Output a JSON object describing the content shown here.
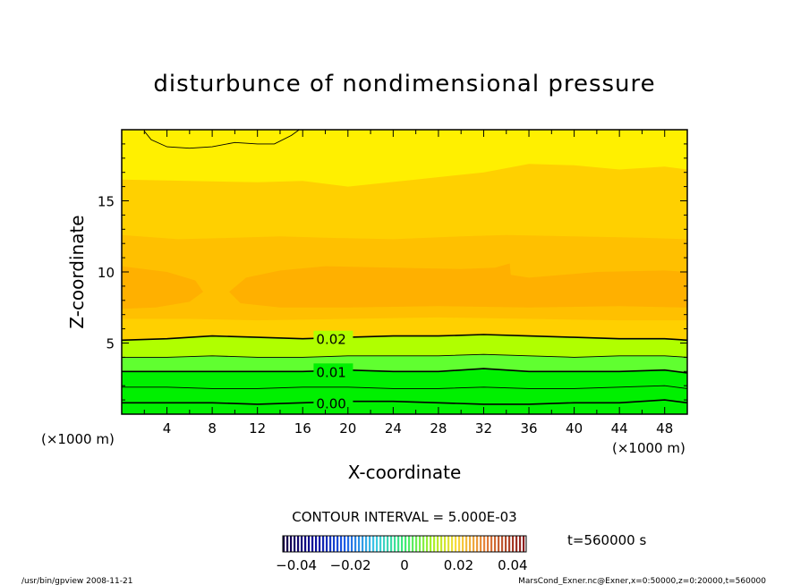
{
  "chart_data": {
    "type": "contour",
    "title": "disturbunce of nondimensional pressure",
    "xlabel": "X-coordinate",
    "ylabel": "Z-coordinate",
    "x_unit": "(×1000 m)",
    "y_unit": "(×1000 m)",
    "xlim": [
      0,
      50
    ],
    "ylim": [
      0,
      20
    ],
    "x_ticks": [
      4,
      8,
      12,
      16,
      20,
      24,
      28,
      32,
      36,
      40,
      44,
      48
    ],
    "y_ticks": [
      5,
      10,
      15
    ],
    "contour_interval_text": "CONTOUR INTERVAL = 5.000E-03",
    "contour_labels": [
      {
        "value": "0.02",
        "x": 17.2,
        "z": 5.3
      },
      {
        "value": "0.01",
        "x": 17.2,
        "z": 3.0
      },
      {
        "value": "0.00",
        "x": 17.2,
        "z": 0.8
      }
    ],
    "contour_lines": [
      {
        "value": 0.02,
        "labeled": true,
        "points": [
          [
            0,
            5.2
          ],
          [
            4,
            5.3
          ],
          [
            8,
            5.5
          ],
          [
            12,
            5.4
          ],
          [
            16,
            5.3
          ],
          [
            20,
            5.4
          ],
          [
            24,
            5.5
          ],
          [
            28,
            5.5
          ],
          [
            32,
            5.6
          ],
          [
            36,
            5.5
          ],
          [
            40,
            5.4
          ],
          [
            44,
            5.3
          ],
          [
            48,
            5.3
          ],
          [
            50,
            5.2
          ]
        ]
      },
      {
        "value": 0.015,
        "labeled": false,
        "points": [
          [
            0,
            4.0
          ],
          [
            4,
            4.0
          ],
          [
            8,
            4.1
          ],
          [
            12,
            4.0
          ],
          [
            16,
            4.0
          ],
          [
            20,
            4.1
          ],
          [
            24,
            4.1
          ],
          [
            28,
            4.1
          ],
          [
            32,
            4.2
          ],
          [
            36,
            4.1
          ],
          [
            40,
            4.0
          ],
          [
            44,
            4.1
          ],
          [
            48,
            4.1
          ],
          [
            50,
            4.0
          ]
        ]
      },
      {
        "value": 0.01,
        "labeled": true,
        "points": [
          [
            0,
            3.0
          ],
          [
            4,
            3.0
          ],
          [
            8,
            3.0
          ],
          [
            12,
            3.0
          ],
          [
            16,
            3.0
          ],
          [
            20,
            3.1
          ],
          [
            24,
            3.0
          ],
          [
            28,
            3.0
          ],
          [
            32,
            3.2
          ],
          [
            36,
            3.0
          ],
          [
            40,
            3.0
          ],
          [
            44,
            3.0
          ],
          [
            48,
            3.1
          ],
          [
            50,
            2.9
          ]
        ]
      },
      {
        "value": 0.005,
        "labeled": false,
        "points": [
          [
            0,
            1.9
          ],
          [
            4,
            1.9
          ],
          [
            8,
            1.8
          ],
          [
            12,
            1.8
          ],
          [
            16,
            1.9
          ],
          [
            20,
            1.9
          ],
          [
            24,
            1.8
          ],
          [
            28,
            1.8
          ],
          [
            32,
            1.9
          ],
          [
            36,
            1.8
          ],
          [
            40,
            1.8
          ],
          [
            44,
            1.9
          ],
          [
            48,
            2.0
          ],
          [
            50,
            1.8
          ]
        ]
      },
      {
        "value": 0.0,
        "labeled": true,
        "points": [
          [
            0,
            0.8
          ],
          [
            4,
            0.8
          ],
          [
            8,
            0.8
          ],
          [
            12,
            0.7
          ],
          [
            16,
            0.8
          ],
          [
            20,
            0.9
          ],
          [
            24,
            0.9
          ],
          [
            28,
            0.8
          ],
          [
            32,
            0.7
          ],
          [
            36,
            0.7
          ],
          [
            40,
            0.8
          ],
          [
            44,
            0.8
          ],
          [
            48,
            1.0
          ],
          [
            50,
            0.8
          ]
        ]
      },
      {
        "value": 0.045,
        "labeled": false,
        "points": [
          [
            2,
            19.9
          ],
          [
            2.6,
            19.3
          ],
          [
            4,
            18.8
          ],
          [
            6,
            18.7
          ],
          [
            8,
            18.8
          ],
          [
            10,
            19.1
          ],
          [
            12,
            19.0
          ],
          [
            13.5,
            19.0
          ],
          [
            15,
            19.6
          ],
          [
            15.7,
            20.0
          ]
        ]
      }
    ],
    "colorbar": {
      "min": -0.045,
      "max": 0.045,
      "tick_labels": [
        "−0.04",
        "−0.02",
        "0",
        "0.02",
        "0.04"
      ],
      "tick_values": [
        -0.04,
        -0.02,
        0,
        0.02,
        0.04
      ]
    },
    "time_label": "t=560000 s",
    "footer_left": "/usr/bin/gpview   2008-11-21",
    "footer_right": "MarsCond_Exner.nc@Exner,x=0:50000,z=0:20000,t=560000",
    "colors": {
      "green": "#00f000",
      "light_green": "#60ff30",
      "yellow_green": "#b0ff00",
      "yellow": "#fff000",
      "pale_orange": "#ffd000",
      "orange": "#ffc000",
      "deep_orange": "#ffb000",
      "line": "#000000"
    }
  }
}
